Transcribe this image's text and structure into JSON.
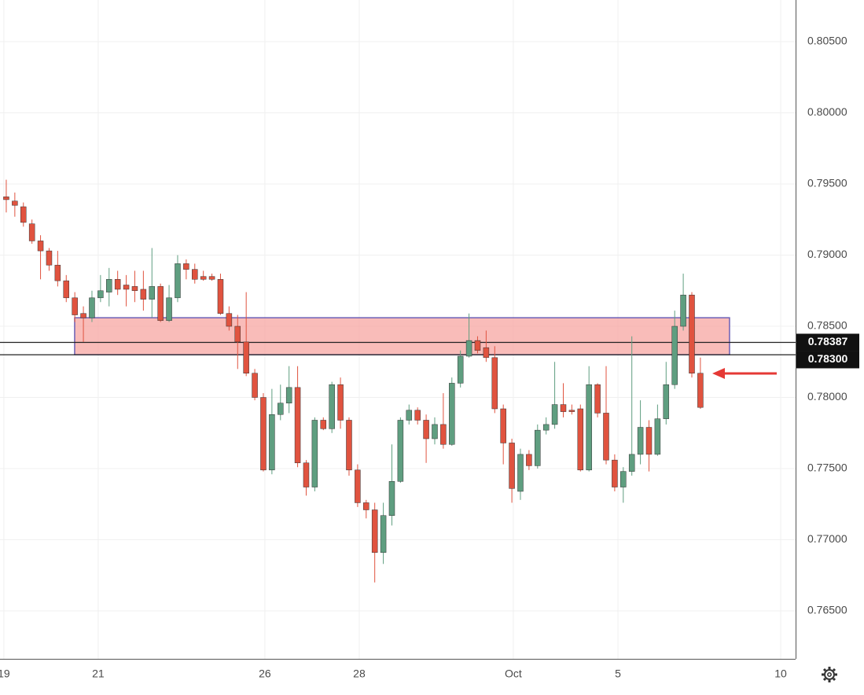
{
  "chart_data": {
    "type": "candlestick",
    "up_color": "#5f9e80",
    "down_color": "#e0533f",
    "zone_color": "#f7a6a1",
    "grid": true,
    "ylim": [
      0.76163,
      0.80793
    ],
    "yticks": [
      {
        "value": 0.765,
        "label": "0.76500"
      },
      {
        "value": 0.77,
        "label": "0.77000"
      },
      {
        "value": 0.775,
        "label": "0.77500"
      },
      {
        "value": 0.78,
        "label": "0.78000"
      },
      {
        "value": 0.785,
        "label": "0.78500"
      },
      {
        "value": 0.79,
        "label": "0.79000"
      },
      {
        "value": 0.795,
        "label": "0.79500"
      },
      {
        "value": 0.8,
        "label": "0.80000"
      },
      {
        "value": 0.805,
        "label": "0.80500"
      }
    ],
    "xlim": [
      -0.73,
      92.11
    ],
    "xticks": [
      {
        "value": -0.28,
        "label": "19"
      },
      {
        "value": 10.73,
        "label": "21"
      },
      {
        "value": 30.18,
        "label": "26"
      },
      {
        "value": 41.19,
        "label": "28"
      },
      {
        "value": 59.17,
        "label": "Oct"
      },
      {
        "value": 71.38,
        "label": "5"
      },
      {
        "value": 90.37,
        "label": "10"
      }
    ],
    "zone": {
      "top": 0.7856,
      "bottom": 0.783,
      "x_start": 7.98,
      "x_end": 84.4
    },
    "hlines": [
      {
        "value": 0.78387,
        "label": "0.78387"
      },
      {
        "value": 0.783,
        "label": "0.78300"
      }
    ],
    "open": [
      0.7941,
      0.7938,
      0.7934,
      0.7922,
      0.791,
      0.7903,
      0.7893,
      0.7882,
      0.787,
      0.7859,
      0.7856,
      0.787,
      0.7874,
      0.7883,
      0.7879,
      0.7878,
      0.7876,
      0.7869,
      0.7878,
      0.7854,
      0.787,
      0.7894,
      0.789,
      0.7885,
      0.7885,
      0.7883,
      0.7859,
      0.785,
      0.7839,
      0.7817,
      0.78,
      0.7749,
      0.7788,
      0.7796,
      0.7807,
      0.7754,
      0.7737,
      0.7784,
      0.7778,
      0.7809,
      0.7784,
      0.7749,
      0.7726,
      0.7721,
      0.7691,
      0.7717,
      0.7741,
      0.7784,
      0.7791,
      0.7784,
      0.7771,
      0.7781,
      0.7767,
      0.781,
      0.7829,
      0.784,
      0.7835,
      0.7828,
      0.7792,
      0.7768,
      0.7734,
      0.776,
      0.7752,
      0.7777,
      0.7781,
      0.7795,
      0.7791,
      0.7792,
      0.7749,
      0.7809,
      0.7789,
      0.7756,
      0.7737,
      0.7748,
      0.776,
      0.7779,
      0.776,
      0.7785,
      0.7809,
      0.785,
      0.7872,
      0.7817
    ],
    "high": [
      0.7953,
      0.7944,
      0.7937,
      0.7925,
      0.7914,
      0.7905,
      0.7903,
      0.7886,
      0.7874,
      0.7864,
      0.7875,
      0.7886,
      0.7891,
      0.7889,
      0.7886,
      0.7889,
      0.7889,
      0.7905,
      0.788,
      0.7879,
      0.79,
      0.7897,
      0.7894,
      0.7889,
      0.7887,
      0.7887,
      0.7864,
      0.7858,
      0.7874,
      0.782,
      0.7803,
      0.7806,
      0.7809,
      0.7822,
      0.7822,
      0.7756,
      0.7786,
      0.7786,
      0.7811,
      0.7814,
      0.7786,
      0.7753,
      0.7728,
      0.7726,
      0.7726,
      0.7767,
      0.7786,
      0.7795,
      0.7793,
      0.7788,
      0.7786,
      0.7803,
      0.7814,
      0.7833,
      0.7859,
      0.7843,
      0.7847,
      0.7836,
      0.7795,
      0.7771,
      0.7764,
      0.7763,
      0.7781,
      0.7786,
      0.7825,
      0.781,
      0.7795,
      0.7795,
      0.7822,
      0.781,
      0.7822,
      0.776,
      0.7751,
      0.7843,
      0.7798,
      0.7784,
      0.7795,
      0.7825,
      0.7861,
      0.7887,
      0.7874,
      0.7828
    ],
    "low": [
      0.793,
      0.7927,
      0.792,
      0.7908,
      0.7883,
      0.7889,
      0.7878,
      0.7867,
      0.7853,
      0.7839,
      0.7853,
      0.7867,
      0.7864,
      0.7872,
      0.7864,
      0.7867,
      0.7861,
      0.7856,
      0.7853,
      0.7853,
      0.7867,
      0.7883,
      0.788,
      0.7882,
      0.7882,
      0.7858,
      0.7847,
      0.782,
      0.7815,
      0.7798,
      0.7748,
      0.7746,
      0.7784,
      0.7789,
      0.7751,
      0.7731,
      0.7734,
      0.7777,
      0.7775,
      0.7778,
      0.7745,
      0.7723,
      0.7715,
      0.767,
      0.7683,
      0.771,
      0.774,
      0.7781,
      0.7781,
      0.7754,
      0.7767,
      0.7764,
      0.7766,
      0.7807,
      0.7828,
      0.7831,
      0.7825,
      0.7789,
      0.7753,
      0.7726,
      0.7728,
      0.7749,
      0.775,
      0.7774,
      0.7778,
      0.7786,
      0.7788,
      0.7748,
      0.7748,
      0.7786,
      0.7753,
      0.7734,
      0.7726,
      0.7745,
      0.7753,
      0.7748,
      0.7759,
      0.7781,
      0.7806,
      0.7847,
      0.7814,
      0.7792
    ],
    "close": [
      0.7939,
      0.7935,
      0.7923,
      0.791,
      0.7903,
      0.7893,
      0.7882,
      0.787,
      0.7858,
      0.7856,
      0.787,
      0.7875,
      0.7883,
      0.7876,
      0.7876,
      0.7875,
      0.7869,
      0.7878,
      0.7854,
      0.787,
      0.7894,
      0.789,
      0.7883,
      0.7883,
      0.7883,
      0.7859,
      0.785,
      0.7839,
      0.7817,
      0.78,
      0.7749,
      0.7788,
      0.7796,
      0.7807,
      0.7754,
      0.7737,
      0.7784,
      0.7778,
      0.7809,
      0.7784,
      0.7749,
      0.7726,
      0.7721,
      0.7691,
      0.7717,
      0.7741,
      0.7784,
      0.7791,
      0.7784,
      0.7771,
      0.7781,
      0.7767,
      0.781,
      0.7829,
      0.784,
      0.7833,
      0.7828,
      0.7792,
      0.7768,
      0.7736,
      0.776,
      0.7752,
      0.7777,
      0.7781,
      0.7795,
      0.779,
      0.779,
      0.7749,
      0.7809,
      0.7789,
      0.7756,
      0.7737,
      0.7748,
      0.776,
      0.7779,
      0.776,
      0.7785,
      0.7809,
      0.785,
      0.7872,
      0.7817,
      0.7793
    ]
  }
}
